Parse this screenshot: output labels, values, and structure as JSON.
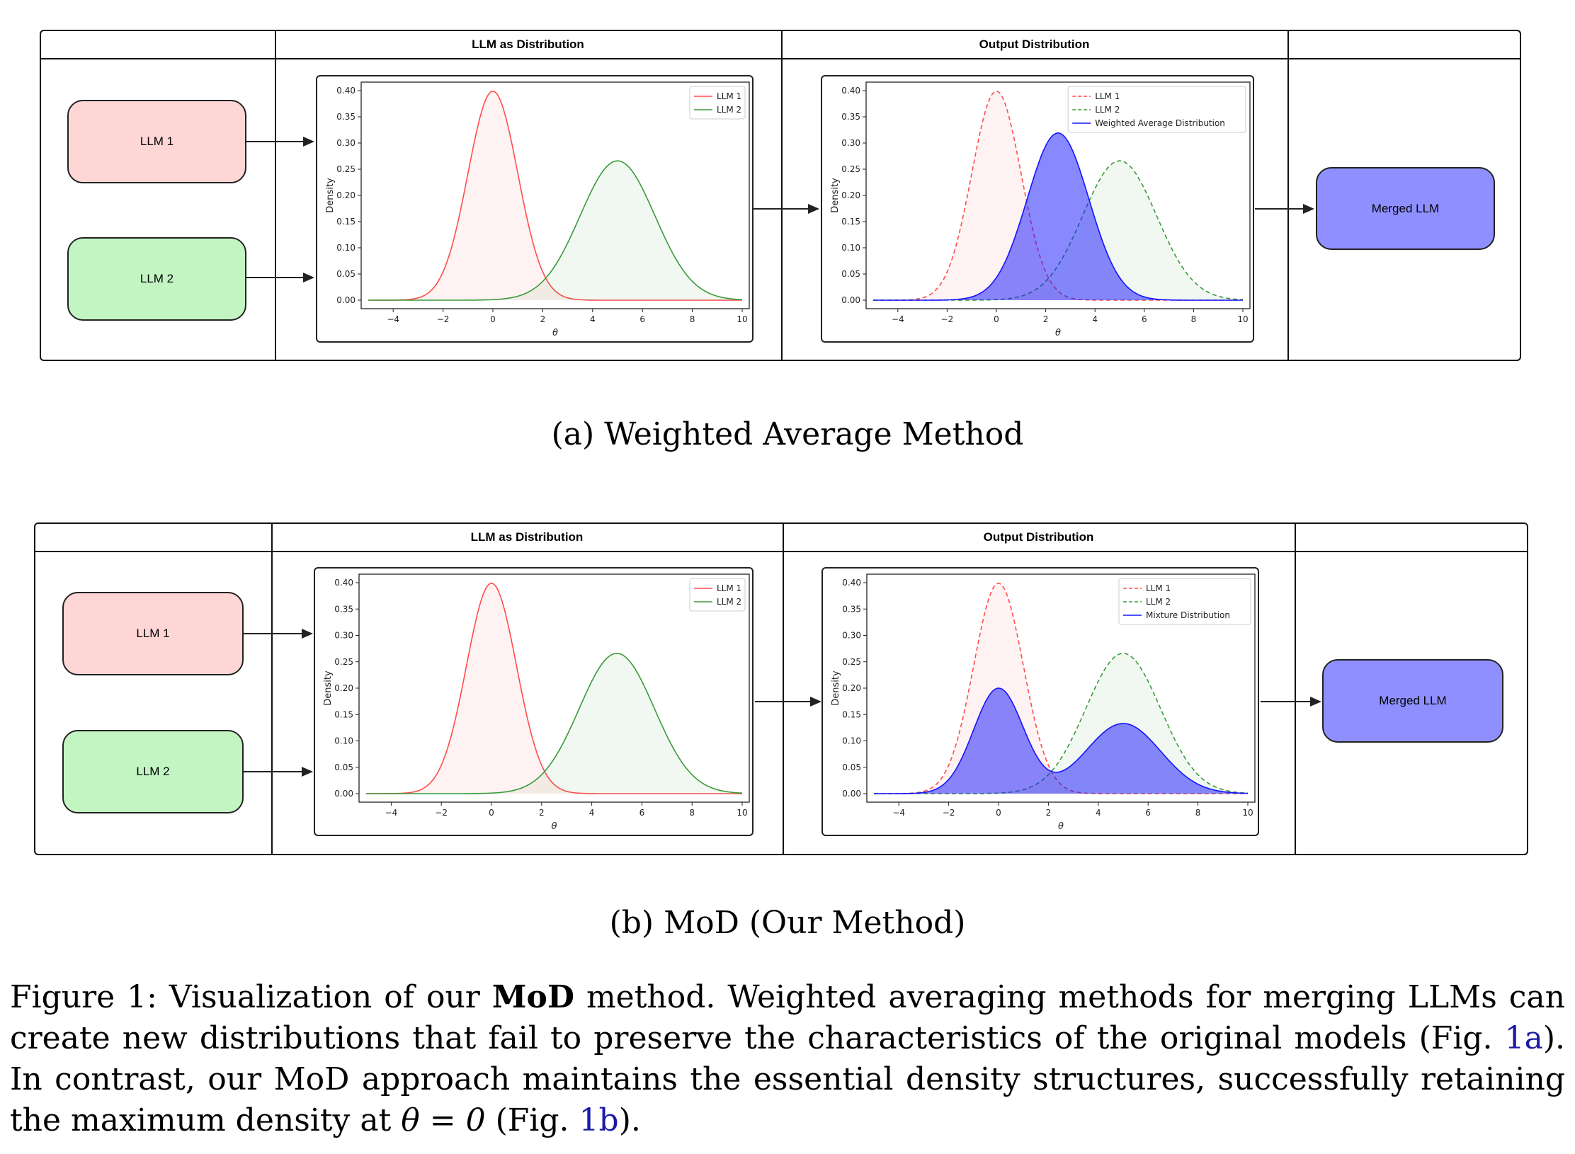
{
  "figures": [
    {
      "id": "a",
      "column_headers": [
        "LLM as Distribution",
        "Output Distribution"
      ],
      "inputs": [
        "LLM 1",
        "LLM 2"
      ],
      "output_label": "Merged LLM",
      "subcaption": "(a) Weighted Average Method"
    },
    {
      "id": "b",
      "column_headers": [
        "LLM as Distribution",
        "Output Distribution"
      ],
      "inputs": [
        "LLM 1",
        "LLM 2"
      ],
      "output_label": "Merged LLM",
      "subcaption": "(b) MoD (Our Method)"
    }
  ],
  "caption": {
    "prefix": "Figure 1: Visualization of our ",
    "bold": "MoD",
    "part1": " method. Weighted averaging methods for merging LLMs can create new distributions that fail to preserve the characteristics of the original models (Fig. ",
    "ref1": "1a",
    "part2": "). In contrast, our MoD approach maintains the essential density structures, successfully retaining the maximum density at ",
    "math": "θ = 0",
    "part3": " (Fig. ",
    "ref2": "1b",
    "part4": ")."
  },
  "colors": {
    "llm1": "#ff4d4d",
    "llm2": "#3a9a3a",
    "output": "#1414ff",
    "llm1_fill": "#ffd6d6",
    "llm2_fill": "#c3f5c3",
    "merged_fill": "#8f8fff"
  },
  "chart_data": [
    {
      "id": "a-input",
      "type": "area",
      "xlabel": "θ",
      "ylabel": "Density",
      "xlim": [
        -5,
        10
      ],
      "ylim": [
        0,
        0.4
      ],
      "xticks": [
        -4,
        -2,
        0,
        2,
        4,
        6,
        8,
        10
      ],
      "yticks": [
        0.0,
        0.05,
        0.1,
        0.15,
        0.2,
        0.25,
        0.3,
        0.35,
        0.4
      ],
      "legend": "top-right",
      "series": [
        {
          "name": "LLM 1",
          "dist": "normal",
          "mean": 0,
          "sd": 1.0,
          "weight": 1,
          "style": "solid",
          "color": "#ff4d4d"
        },
        {
          "name": "LLM 2",
          "dist": "normal",
          "mean": 5,
          "sd": 1.5,
          "weight": 1,
          "style": "solid",
          "color": "#3a9a3a"
        }
      ]
    },
    {
      "id": "a-output",
      "type": "area",
      "xlabel": "θ",
      "ylabel": "Density",
      "xlim": [
        -5,
        10
      ],
      "ylim": [
        0,
        0.4
      ],
      "xticks": [
        -4,
        -2,
        0,
        2,
        4,
        6,
        8,
        10
      ],
      "yticks": [
        0.0,
        0.05,
        0.1,
        0.15,
        0.2,
        0.25,
        0.3,
        0.35,
        0.4
      ],
      "legend": "top-right",
      "series": [
        {
          "name": "LLM 1",
          "dist": "normal",
          "mean": 0,
          "sd": 1.0,
          "weight": 1,
          "style": "dashed",
          "color": "#ff4d4d"
        },
        {
          "name": "LLM 2",
          "dist": "normal",
          "mean": 5,
          "sd": 1.5,
          "weight": 1,
          "style": "dashed",
          "color": "#3a9a3a"
        },
        {
          "name": "Weighted Average Distribution",
          "dist": "normal",
          "mean": 2.5,
          "sd": 1.25,
          "weight": 1,
          "style": "solid",
          "color": "#1414ff"
        }
      ]
    },
    {
      "id": "b-input",
      "type": "area",
      "xlabel": "θ",
      "ylabel": "Density",
      "xlim": [
        -5,
        10
      ],
      "ylim": [
        0,
        0.4
      ],
      "xticks": [
        -4,
        -2,
        0,
        2,
        4,
        6,
        8,
        10
      ],
      "yticks": [
        0.0,
        0.05,
        0.1,
        0.15,
        0.2,
        0.25,
        0.3,
        0.35,
        0.4
      ],
      "legend": "top-right",
      "series": [
        {
          "name": "LLM 1",
          "dist": "normal",
          "mean": 0,
          "sd": 1.0,
          "weight": 1,
          "style": "solid",
          "color": "#ff4d4d"
        },
        {
          "name": "LLM 2",
          "dist": "normal",
          "mean": 5,
          "sd": 1.5,
          "weight": 1,
          "style": "solid",
          "color": "#3a9a3a"
        }
      ]
    },
    {
      "id": "b-output",
      "type": "area",
      "xlabel": "θ",
      "ylabel": "Density",
      "xlim": [
        -5,
        10
      ],
      "ylim": [
        0,
        0.4
      ],
      "xticks": [
        -4,
        -2,
        0,
        2,
        4,
        6,
        8,
        10
      ],
      "yticks": [
        0.0,
        0.05,
        0.1,
        0.15,
        0.2,
        0.25,
        0.3,
        0.35,
        0.4
      ],
      "legend": "top-right",
      "series": [
        {
          "name": "LLM 1",
          "dist": "normal",
          "mean": 0,
          "sd": 1.0,
          "weight": 1,
          "style": "dashed",
          "color": "#ff4d4d"
        },
        {
          "name": "LLM 2",
          "dist": "normal",
          "mean": 5,
          "sd": 1.5,
          "weight": 1,
          "style": "dashed",
          "color": "#3a9a3a"
        },
        {
          "name": "Mixture Distribution",
          "dist": "mixture",
          "components": [
            {
              "mean": 0,
              "sd": 1.0,
              "weight": 0.5
            },
            {
              "mean": 5,
              "sd": 1.5,
              "weight": 0.5
            }
          ],
          "style": "solid",
          "color": "#1414ff"
        }
      ]
    }
  ]
}
